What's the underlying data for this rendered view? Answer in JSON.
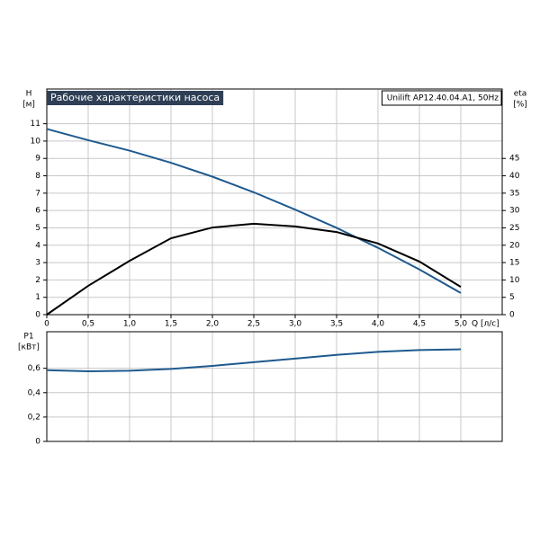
{
  "chart_data": [
    {
      "type": "line",
      "title": "Рабочие характеристики насоса",
      "subtitle": "Unilift AP12.40.04.A1, 50Hz",
      "xlabel": "Q [л/с]",
      "ylabel": "H",
      "yunit": "[м]",
      "y2label": "eta",
      "y2unit": "[%]",
      "x": [
        0,
        0.5,
        1,
        1.5,
        2,
        2.5,
        3,
        3.5,
        4,
        4.5,
        5
      ],
      "xlim": [
        0,
        5.5
      ],
      "xticks": [
        0,
        {
          "value": 0.5,
          "label": "0,5"
        },
        {
          "value": 1,
          "label": "1,0"
        },
        {
          "value": 1.5,
          "label": "1,5"
        },
        {
          "value": 2,
          "label": "2,0"
        },
        {
          "value": 2.5,
          "label": "2,5"
        },
        {
          "value": 3,
          "label": "3,0"
        },
        {
          "value": 3.5,
          "label": "3,5"
        },
        {
          "value": 4,
          "label": "4,0"
        },
        {
          "value": 4.5,
          "label": "4,5"
        },
        {
          "value": 5,
          "label": "5,0"
        }
      ],
      "ylim": [
        0,
        13
      ],
      "yticks": [
        0,
        1,
        2,
        3,
        4,
        5,
        6,
        7,
        8,
        9,
        10,
        11
      ],
      "y2lim": [
        0,
        65
      ],
      "y2ticks": [
        0,
        5,
        10,
        15,
        20,
        25,
        30,
        35,
        40,
        45
      ],
      "grid": true,
      "series": [
        {
          "color": "#1f5a8f",
          "values": [
            10.7,
            10.05,
            9.45,
            8.75,
            7.95,
            7.05,
            6.05,
            5.0,
            3.85,
            2.6,
            1.25
          ]
        },
        {
          "color": "#000000",
          "axis": "y2",
          "values": [
            0,
            8.3,
            15.5,
            22,
            25.1,
            26.2,
            25.4,
            23.8,
            20.5,
            15.3,
            8.0
          ]
        }
      ]
    },
    {
      "type": "line",
      "ylabel": "P1",
      "yunit": "[кВт]",
      "x": [
        0,
        0.5,
        1,
        1.5,
        2,
        2.5,
        3,
        3.5,
        4,
        4.5,
        5
      ],
      "xlim": [
        0,
        5.5
      ],
      "ylim": [
        0,
        0.9
      ],
      "yticks": [
        0,
        {
          "value": 0.2,
          "label": "0,2"
        },
        {
          "value": 0.4,
          "label": "0,4"
        },
        {
          "value": 0.6,
          "label": "0,6"
        }
      ],
      "grid": true,
      "series": [
        {
          "color": "#1f5a8f",
          "values": [
            0.585,
            0.575,
            0.58,
            0.595,
            0.62,
            0.65,
            0.68,
            0.71,
            0.735,
            0.75,
            0.756
          ]
        }
      ]
    }
  ]
}
